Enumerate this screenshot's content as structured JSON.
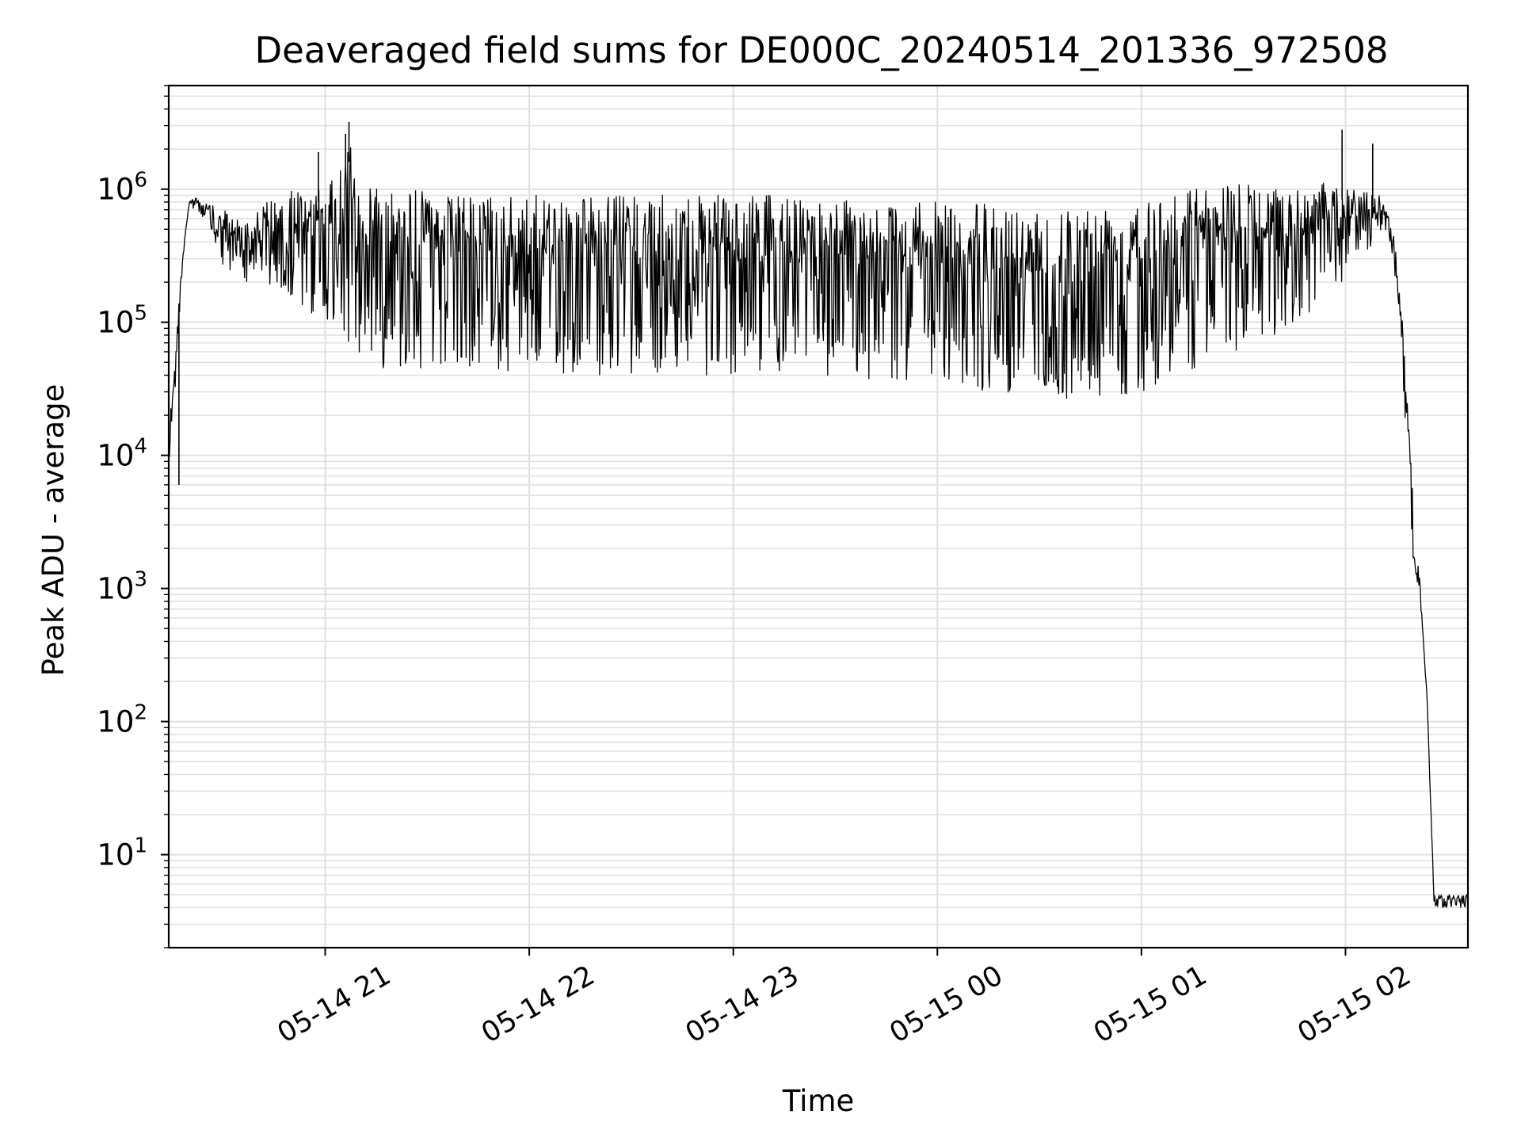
{
  "chart_data": {
    "type": "line",
    "title": "Deaveraged field sums for DE000C_20240514_201336_972508",
    "xlabel": "Time",
    "ylabel": "Peak ADU - average",
    "yscale": "log",
    "grid": true,
    "grid_color": "#e0e0e0",
    "line_color": "#000000",
    "xlim": [
      "2024-05-14T20:14:00",
      "2024-05-15T02:36:00"
    ],
    "ylim": [
      2,
      6000000
    ],
    "x_ticks": [
      {
        "value": "2024-05-14T21:00:00",
        "label": "05-14 21"
      },
      {
        "value": "2024-05-14T22:00:00",
        "label": "05-14 22"
      },
      {
        "value": "2024-05-14T23:00:00",
        "label": "05-14 23"
      },
      {
        "value": "2024-05-15T00:00:00",
        "label": "05-15 00"
      },
      {
        "value": "2024-05-15T01:00:00",
        "label": "05-15 01"
      },
      {
        "value": "2024-05-15T02:00:00",
        "label": "05-15 02"
      }
    ],
    "y_ticks": [
      {
        "value": 10,
        "base": "10",
        "exp": "1"
      },
      {
        "value": 100,
        "base": "10",
        "exp": "2"
      },
      {
        "value": 1000,
        "base": "10",
        "exp": "3"
      },
      {
        "value": 10000,
        "base": "10",
        "exp": "4"
      },
      {
        "value": 100000,
        "base": "10",
        "exp": "5"
      },
      {
        "value": 1000000,
        "base": "10",
        "exp": "6"
      }
    ],
    "series": [
      {
        "x": [
          "2024-05-14T20:14:00",
          "2024-05-14T20:15:00",
          "2024-05-14T20:16:00",
          "2024-05-14T20:17:00",
          "2024-05-14T20:18:00",
          "2024-05-14T20:19:00",
          "2024-05-14T20:20:00",
          "2024-05-14T20:22:00",
          "2024-05-14T20:24:00",
          "2024-05-14T20:26:00",
          "2024-05-14T20:28:00",
          "2024-05-14T20:30:00",
          "2024-05-14T20:35:00",
          "2024-05-14T20:40:00",
          "2024-05-14T20:45:00",
          "2024-05-14T20:48:00",
          "2024-05-14T20:50:00",
          "2024-05-14T20:53:00",
          "2024-05-14T20:55:00",
          "2024-05-14T20:58:00",
          "2024-05-14T21:00:00",
          "2024-05-14T21:03:00",
          "2024-05-14T21:05:00",
          "2024-05-14T21:07:00",
          "2024-05-14T21:08:00",
          "2024-05-14T21:09:00",
          "2024-05-14T21:10:00",
          "2024-05-14T21:12:00",
          "2024-05-14T21:14:00",
          "2024-05-14T21:16:00",
          "2024-05-14T21:18:00",
          "2024-05-14T21:20:00",
          "2024-05-14T21:25:00",
          "2024-05-14T21:30:00",
          "2024-05-14T21:35:00",
          "2024-05-14T21:40:00",
          "2024-05-14T21:45:00",
          "2024-05-14T21:50:00",
          "2024-05-14T21:55:00",
          "2024-05-14T22:00:00",
          "2024-05-14T22:10:00",
          "2024-05-14T22:20:00",
          "2024-05-14T22:30:00",
          "2024-05-14T22:40:00",
          "2024-05-14T22:50:00",
          "2024-05-14T23:00:00",
          "2024-05-14T23:10:00",
          "2024-05-14T23:20:00",
          "2024-05-14T23:30:00",
          "2024-05-14T23:40:00",
          "2024-05-14T23:50:00",
          "2024-05-15T00:00:00",
          "2024-05-15T00:10:00",
          "2024-05-15T00:20:00",
          "2024-05-15T00:30:00",
          "2024-05-15T00:40:00",
          "2024-05-15T00:50:00",
          "2024-05-15T01:00:00",
          "2024-05-15T01:10:00",
          "2024-05-15T01:20:00",
          "2024-05-15T01:30:00",
          "2024-05-15T01:40:00",
          "2024-05-15T01:50:00",
          "2024-05-15T01:55:00",
          "2024-05-15T02:00:00",
          "2024-05-15T02:05:00",
          "2024-05-15T02:10:00",
          "2024-05-15T02:12:00",
          "2024-05-15T02:14:00",
          "2024-05-15T02:16:00",
          "2024-05-15T02:18:00",
          "2024-05-15T02:20:00",
          "2024-05-15T02:22:00",
          "2024-05-15T02:24:00",
          "2024-05-15T02:26:00",
          "2024-05-15T02:28:00",
          "2024-05-15T02:30:00",
          "2024-05-15T02:32:00",
          "2024-05-15T02:34:00",
          "2024-05-15T02:36:00"
        ],
        "upper": [
          20000,
          40000,
          60000,
          150000,
          300000,
          500000,
          800000,
          900000,
          800000,
          800000,
          700000,
          700000,
          600000,
          700000,
          900000,
          700000,
          1000000,
          1000000,
          800000,
          1000000,
          1100000,
          1200000,
          1500000,
          2000000,
          3000000,
          1500000,
          1200000,
          1200000,
          1200000,
          1100000,
          1100000,
          1100000,
          1000000,
          1000000,
          900000,
          900000,
          900000,
          900000,
          900000,
          900000,
          900000,
          900000,
          900000,
          900000,
          900000,
          900000,
          900000,
          850000,
          850000,
          800000,
          800000,
          800000,
          800000,
          750000,
          750000,
          750000,
          800000,
          900000,
          1000000,
          1100000,
          1100000,
          1000000,
          1000000,
          1200000,
          1000000,
          1000000,
          900000,
          700000,
          500000,
          200000,
          30000,
          5000,
          1000,
          150,
          5,
          5,
          5,
          5,
          5,
          5
        ],
        "lower": [
          6000,
          15000,
          30000,
          100000,
          250000,
          500000,
          700000,
          700000,
          600000,
          500000,
          300000,
          250000,
          200000,
          200000,
          150000,
          150000,
          130000,
          130000,
          120000,
          100000,
          100000,
          90000,
          80000,
          70000,
          60000,
          60000,
          50000,
          50000,
          45000,
          45000,
          45000,
          45000,
          45000,
          45000,
          45000,
          40000,
          40000,
          40000,
          40000,
          40000,
          40000,
          40000,
          40000,
          40000,
          40000,
          40000,
          40000,
          40000,
          38000,
          35000,
          35000,
          35000,
          30000,
          30000,
          28000,
          25000,
          25000,
          30000,
          40000,
          50000,
          60000,
          80000,
          100000,
          150000,
          200000,
          300000,
          400000,
          500000,
          300000,
          100000,
          8000,
          1500,
          700,
          150,
          4,
          4,
          4,
          4,
          4,
          4
        ]
      }
    ],
    "spikes": [
      {
        "x": "2024-05-14T20:58:00",
        "y": 1900000
      },
      {
        "x": "2024-05-14T21:07:00",
        "y": 3200000
      },
      {
        "x": "2024-05-14T21:06:00",
        "y": 2600000
      },
      {
        "x": "2024-05-15T01:59:00",
        "y": 2800000
      },
      {
        "x": "2024-05-15T02:08:00",
        "y": 2200000
      },
      {
        "x": "2024-05-14T20:17:00",
        "y": 6000
      }
    ]
  }
}
